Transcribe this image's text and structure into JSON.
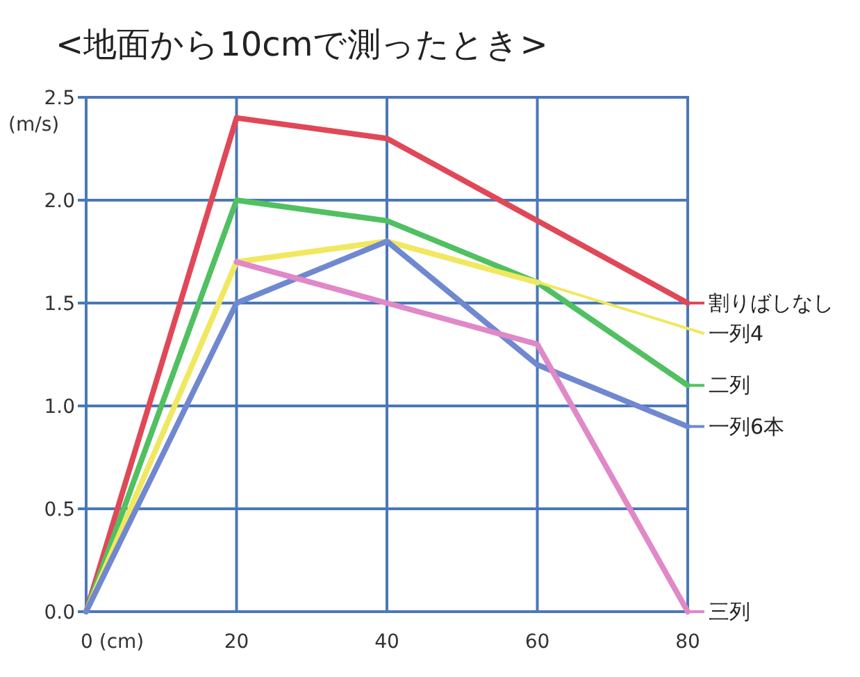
{
  "chart_data": {
    "type": "line",
    "title": "<地面から10cmで測ったとき>",
    "ylabel": "(m/s)",
    "x": [
      0,
      20,
      40,
      60,
      80
    ],
    "xlim": [
      0,
      80
    ],
    "xticks": [
      {
        "value": 0,
        "label": "0 (cm)"
      },
      20,
      40,
      60,
      80
    ],
    "ylim": [
      0,
      2.5
    ],
    "yticks": [
      {
        "value": 0,
        "label": "0.0"
      },
      {
        "value": 0.5,
        "label": "0.5"
      },
      {
        "value": 1,
        "label": "1.0"
      },
      {
        "value": 1.5,
        "label": "1.5"
      },
      {
        "value": 2,
        "label": "2.0"
      },
      {
        "value": 2.5,
        "label": "2.5"
      }
    ],
    "grid": true,
    "legend": "right",
    "marker": "none",
    "line_style": "solid",
    "series": [
      {
        "name": "割りばしなし",
        "color": "#e04858",
        "values": [
          0,
          2.4,
          2.3,
          1.9,
          1.5
        ]
      },
      {
        "name": "二列",
        "color": "#50c060",
        "values": [
          0,
          2.0,
          1.9,
          1.6,
          1.1
        ]
      },
      {
        "name": "一列4",
        "color": "#f0e860",
        "values": [
          0,
          1.7,
          1.8,
          1.6,
          null
        ]
      },
      {
        "name": "一列6本",
        "color": "#7088d0",
        "values": [
          0,
          1.5,
          1.8,
          1.2,
          0.9
        ]
      },
      {
        "name": "三列",
        "color": "#e088c8",
        "values": [
          null,
          1.7,
          1.5,
          1.3,
          0
        ]
      }
    ]
  }
}
